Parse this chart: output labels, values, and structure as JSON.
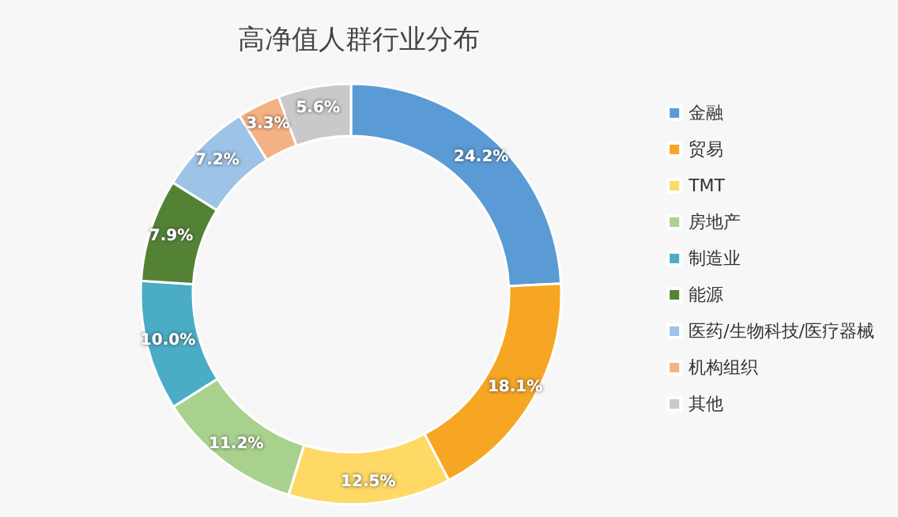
{
  "chart_data": {
    "type": "donut",
    "title": "高净值人群行业分布",
    "categories": [
      "金融",
      "贸易",
      "TMT",
      "房地产",
      "制造业",
      "能源",
      "医药/生物科技/医疗器械",
      "机构组织",
      "其他"
    ],
    "values": [
      24.2,
      18.1,
      12.5,
      11.2,
      10.0,
      7.9,
      7.2,
      3.3,
      5.6
    ],
    "value_labels": [
      "24.2%",
      "18.1%",
      "12.5%",
      "11.2%",
      "10.0%",
      "7.9%",
      "7.2%",
      "3.3%",
      "5.6%"
    ],
    "colors": [
      "#5b9bd5",
      "#f6a623",
      "#ffd966",
      "#a9d18e",
      "#4bacc6",
      "#548235",
      "#9dc3e6",
      "#f4b183",
      "#c9c9c9"
    ],
    "legend": "right"
  }
}
